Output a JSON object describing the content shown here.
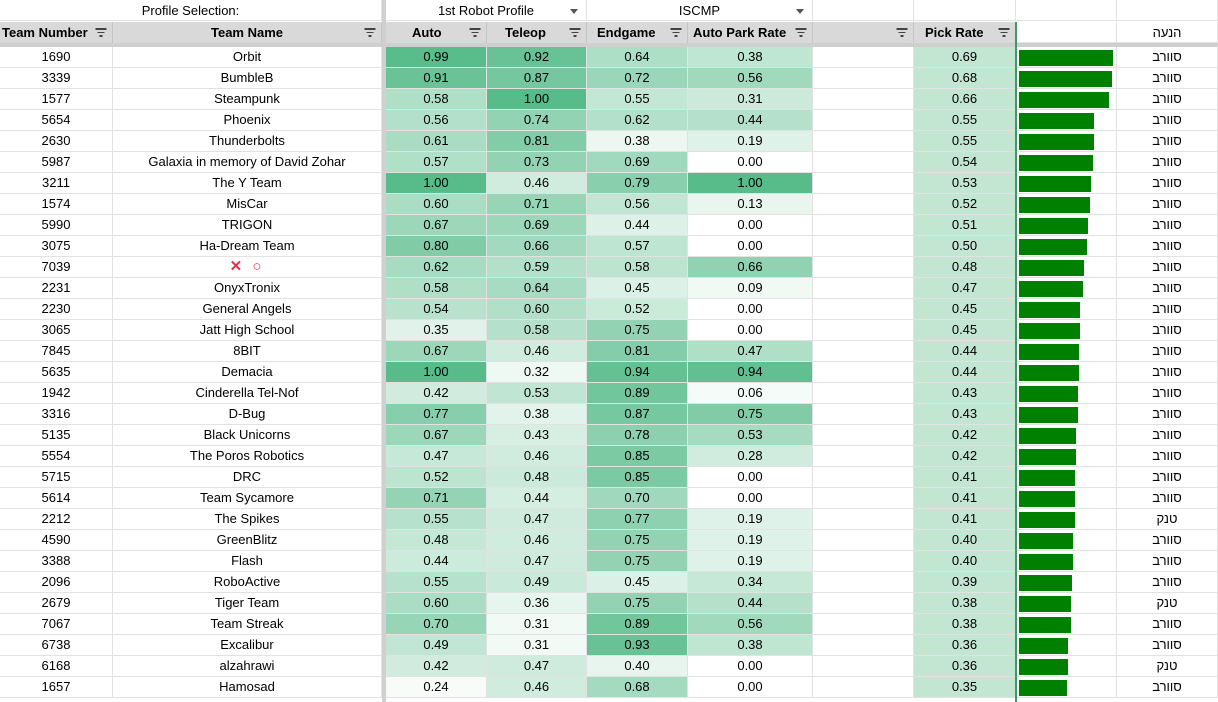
{
  "top_row": {
    "profile_selection_label": "Profile Selection:",
    "profile_value": "1st Robot Profile",
    "event_value": "ISCMP"
  },
  "headers": {
    "team_number": "Team Number",
    "team_name": "Team Name",
    "auto": "Auto",
    "teleop": "Teleop",
    "endgame": "Endgame",
    "auto_park_rate": "Auto Park Rate",
    "pick_rate": "Pick Rate",
    "role": "הנעה"
  },
  "colors": {
    "scale_white": "#ffffff",
    "scale_green": "#57bb8a",
    "bar_green": "#008000"
  },
  "rows": [
    {
      "num": "1690",
      "name": "Orbit",
      "auto": "0.99",
      "teleop": "0.92",
      "endgame": "0.64",
      "park": "0.38",
      "pick": "0.69",
      "role": "סוורב"
    },
    {
      "num": "3339",
      "name": "BumbleB",
      "auto": "0.91",
      "teleop": "0.87",
      "endgame": "0.72",
      "park": "0.56",
      "pick": "0.68",
      "role": "סוורב"
    },
    {
      "num": "1577",
      "name": "Steampunk",
      "auto": "0.58",
      "teleop": "1.00",
      "endgame": "0.55",
      "park": "0.31",
      "pick": "0.66",
      "role": "סוורב"
    },
    {
      "num": "5654",
      "name": "Phoenix",
      "auto": "0.56",
      "teleop": "0.74",
      "endgame": "0.62",
      "park": "0.44",
      "pick": "0.55",
      "role": "סוורב"
    },
    {
      "num": "2630",
      "name": "Thunderbolts",
      "auto": "0.61",
      "teleop": "0.81",
      "endgame": "0.38",
      "park": "0.19",
      "pick": "0.55",
      "role": "סוורב"
    },
    {
      "num": "5987",
      "name": "Galaxia in memory of David Zohar",
      "auto": "0.57",
      "teleop": "0.73",
      "endgame": "0.69",
      "park": "0.00",
      "pick": "0.54",
      "role": "סוורב"
    },
    {
      "num": "3211",
      "name": "The Y Team",
      "auto": "1.00",
      "teleop": "0.46",
      "endgame": "0.79",
      "park": "1.00",
      "pick": "0.53",
      "role": "סוורב"
    },
    {
      "num": "1574",
      "name": "MisCar",
      "auto": "0.60",
      "teleop": "0.71",
      "endgame": "0.56",
      "park": "0.13",
      "pick": "0.52",
      "role": "סוורב"
    },
    {
      "num": "5990",
      "name": "TRIGON",
      "auto": "0.67",
      "teleop": "0.69",
      "endgame": "0.44",
      "park": "0.00",
      "pick": "0.51",
      "role": "סוורב"
    },
    {
      "num": "3075",
      "name": "Ha-Dream Team",
      "auto": "0.80",
      "teleop": "0.66",
      "endgame": "0.57",
      "park": "0.00",
      "pick": "0.50",
      "role": "סוורב"
    },
    {
      "num": "7039",
      "name": "✕ ○",
      "auto": "0.62",
      "teleop": "0.59",
      "endgame": "0.58",
      "park": "0.66",
      "pick": "0.48",
      "role": "סוורב"
    },
    {
      "num": "2231",
      "name": "OnyxTronix",
      "auto": "0.58",
      "teleop": "0.64",
      "endgame": "0.45",
      "park": "0.09",
      "pick": "0.47",
      "role": "סוורב"
    },
    {
      "num": "2230",
      "name": "General Angels",
      "auto": "0.54",
      "teleop": "0.60",
      "endgame": "0.52",
      "park": "0.00",
      "pick": "0.45",
      "role": "סוורב"
    },
    {
      "num": "3065",
      "name": "Jatt High School",
      "auto": "0.35",
      "teleop": "0.58",
      "endgame": "0.75",
      "park": "0.00",
      "pick": "0.45",
      "role": "סוורב"
    },
    {
      "num": "7845",
      "name": "8BIT",
      "auto": "0.67",
      "teleop": "0.46",
      "endgame": "0.81",
      "park": "0.47",
      "pick": "0.44",
      "role": "סוורב"
    },
    {
      "num": "5635",
      "name": "Demacia",
      "auto": "1.00",
      "teleop": "0.32",
      "endgame": "0.94",
      "park": "0.94",
      "pick": "0.44",
      "role": "סוורב"
    },
    {
      "num": "1942",
      "name": "Cinderella Tel-Nof",
      "auto": "0.42",
      "teleop": "0.53",
      "endgame": "0.89",
      "park": "0.06",
      "pick": "0.43",
      "role": "סוורב"
    },
    {
      "num": "3316",
      "name": "D-Bug",
      "auto": "0.77",
      "teleop": "0.38",
      "endgame": "0.87",
      "park": "0.75",
      "pick": "0.43",
      "role": "סוורב"
    },
    {
      "num": "5135",
      "name": "Black Unicorns",
      "auto": "0.67",
      "teleop": "0.43",
      "endgame": "0.78",
      "park": "0.53",
      "pick": "0.42",
      "role": "סוורב"
    },
    {
      "num": "5554",
      "name": "The Poros Robotics",
      "auto": "0.47",
      "teleop": "0.46",
      "endgame": "0.85",
      "park": "0.28",
      "pick": "0.42",
      "role": "סוורב"
    },
    {
      "num": "5715",
      "name": "DRC",
      "auto": "0.52",
      "teleop": "0.48",
      "endgame": "0.85",
      "park": "0.00",
      "pick": "0.41",
      "role": "סוורב"
    },
    {
      "num": "5614",
      "name": "Team Sycamore",
      "auto": "0.71",
      "teleop": "0.44",
      "endgame": "0.70",
      "park": "0.00",
      "pick": "0.41",
      "role": "סוורב"
    },
    {
      "num": "2212",
      "name": "The Spikes",
      "auto": "0.55",
      "teleop": "0.47",
      "endgame": "0.77",
      "park": "0.19",
      "pick": "0.41",
      "role": "טנק"
    },
    {
      "num": "4590",
      "name": "GreenBlitz",
      "auto": "0.48",
      "teleop": "0.46",
      "endgame": "0.75",
      "park": "0.19",
      "pick": "0.40",
      "role": "סוורב"
    },
    {
      "num": "3388",
      "name": "Flash",
      "auto": "0.44",
      "teleop": "0.47",
      "endgame": "0.75",
      "park": "0.19",
      "pick": "0.40",
      "role": "סוורב"
    },
    {
      "num": "2096",
      "name": "RoboActive",
      "auto": "0.55",
      "teleop": "0.49",
      "endgame": "0.45",
      "park": "0.34",
      "pick": "0.39",
      "role": "סוורב"
    },
    {
      "num": "2679",
      "name": "Tiger Team",
      "auto": "0.60",
      "teleop": "0.36",
      "endgame": "0.75",
      "park": "0.44",
      "pick": "0.38",
      "role": "טנק"
    },
    {
      "num": "7067",
      "name": "Team Streak",
      "auto": "0.70",
      "teleop": "0.31",
      "endgame": "0.89",
      "park": "0.56",
      "pick": "0.38",
      "role": "סוורב"
    },
    {
      "num": "6738",
      "name": "Excalibur",
      "auto": "0.49",
      "teleop": "0.31",
      "endgame": "0.93",
      "park": "0.38",
      "pick": "0.36",
      "role": "סוורב"
    },
    {
      "num": "6168",
      "name": "alzahrawi",
      "auto": "0.42",
      "teleop": "0.47",
      "endgame": "0.40",
      "park": "0.00",
      "pick": "0.36",
      "role": "טנק"
    },
    {
      "num": "1657",
      "name": "Hamosad",
      "auto": "0.24",
      "teleop": "0.46",
      "endgame": "0.68",
      "park": "0.00",
      "pick": "0.35",
      "role": "סוורב"
    }
  ]
}
